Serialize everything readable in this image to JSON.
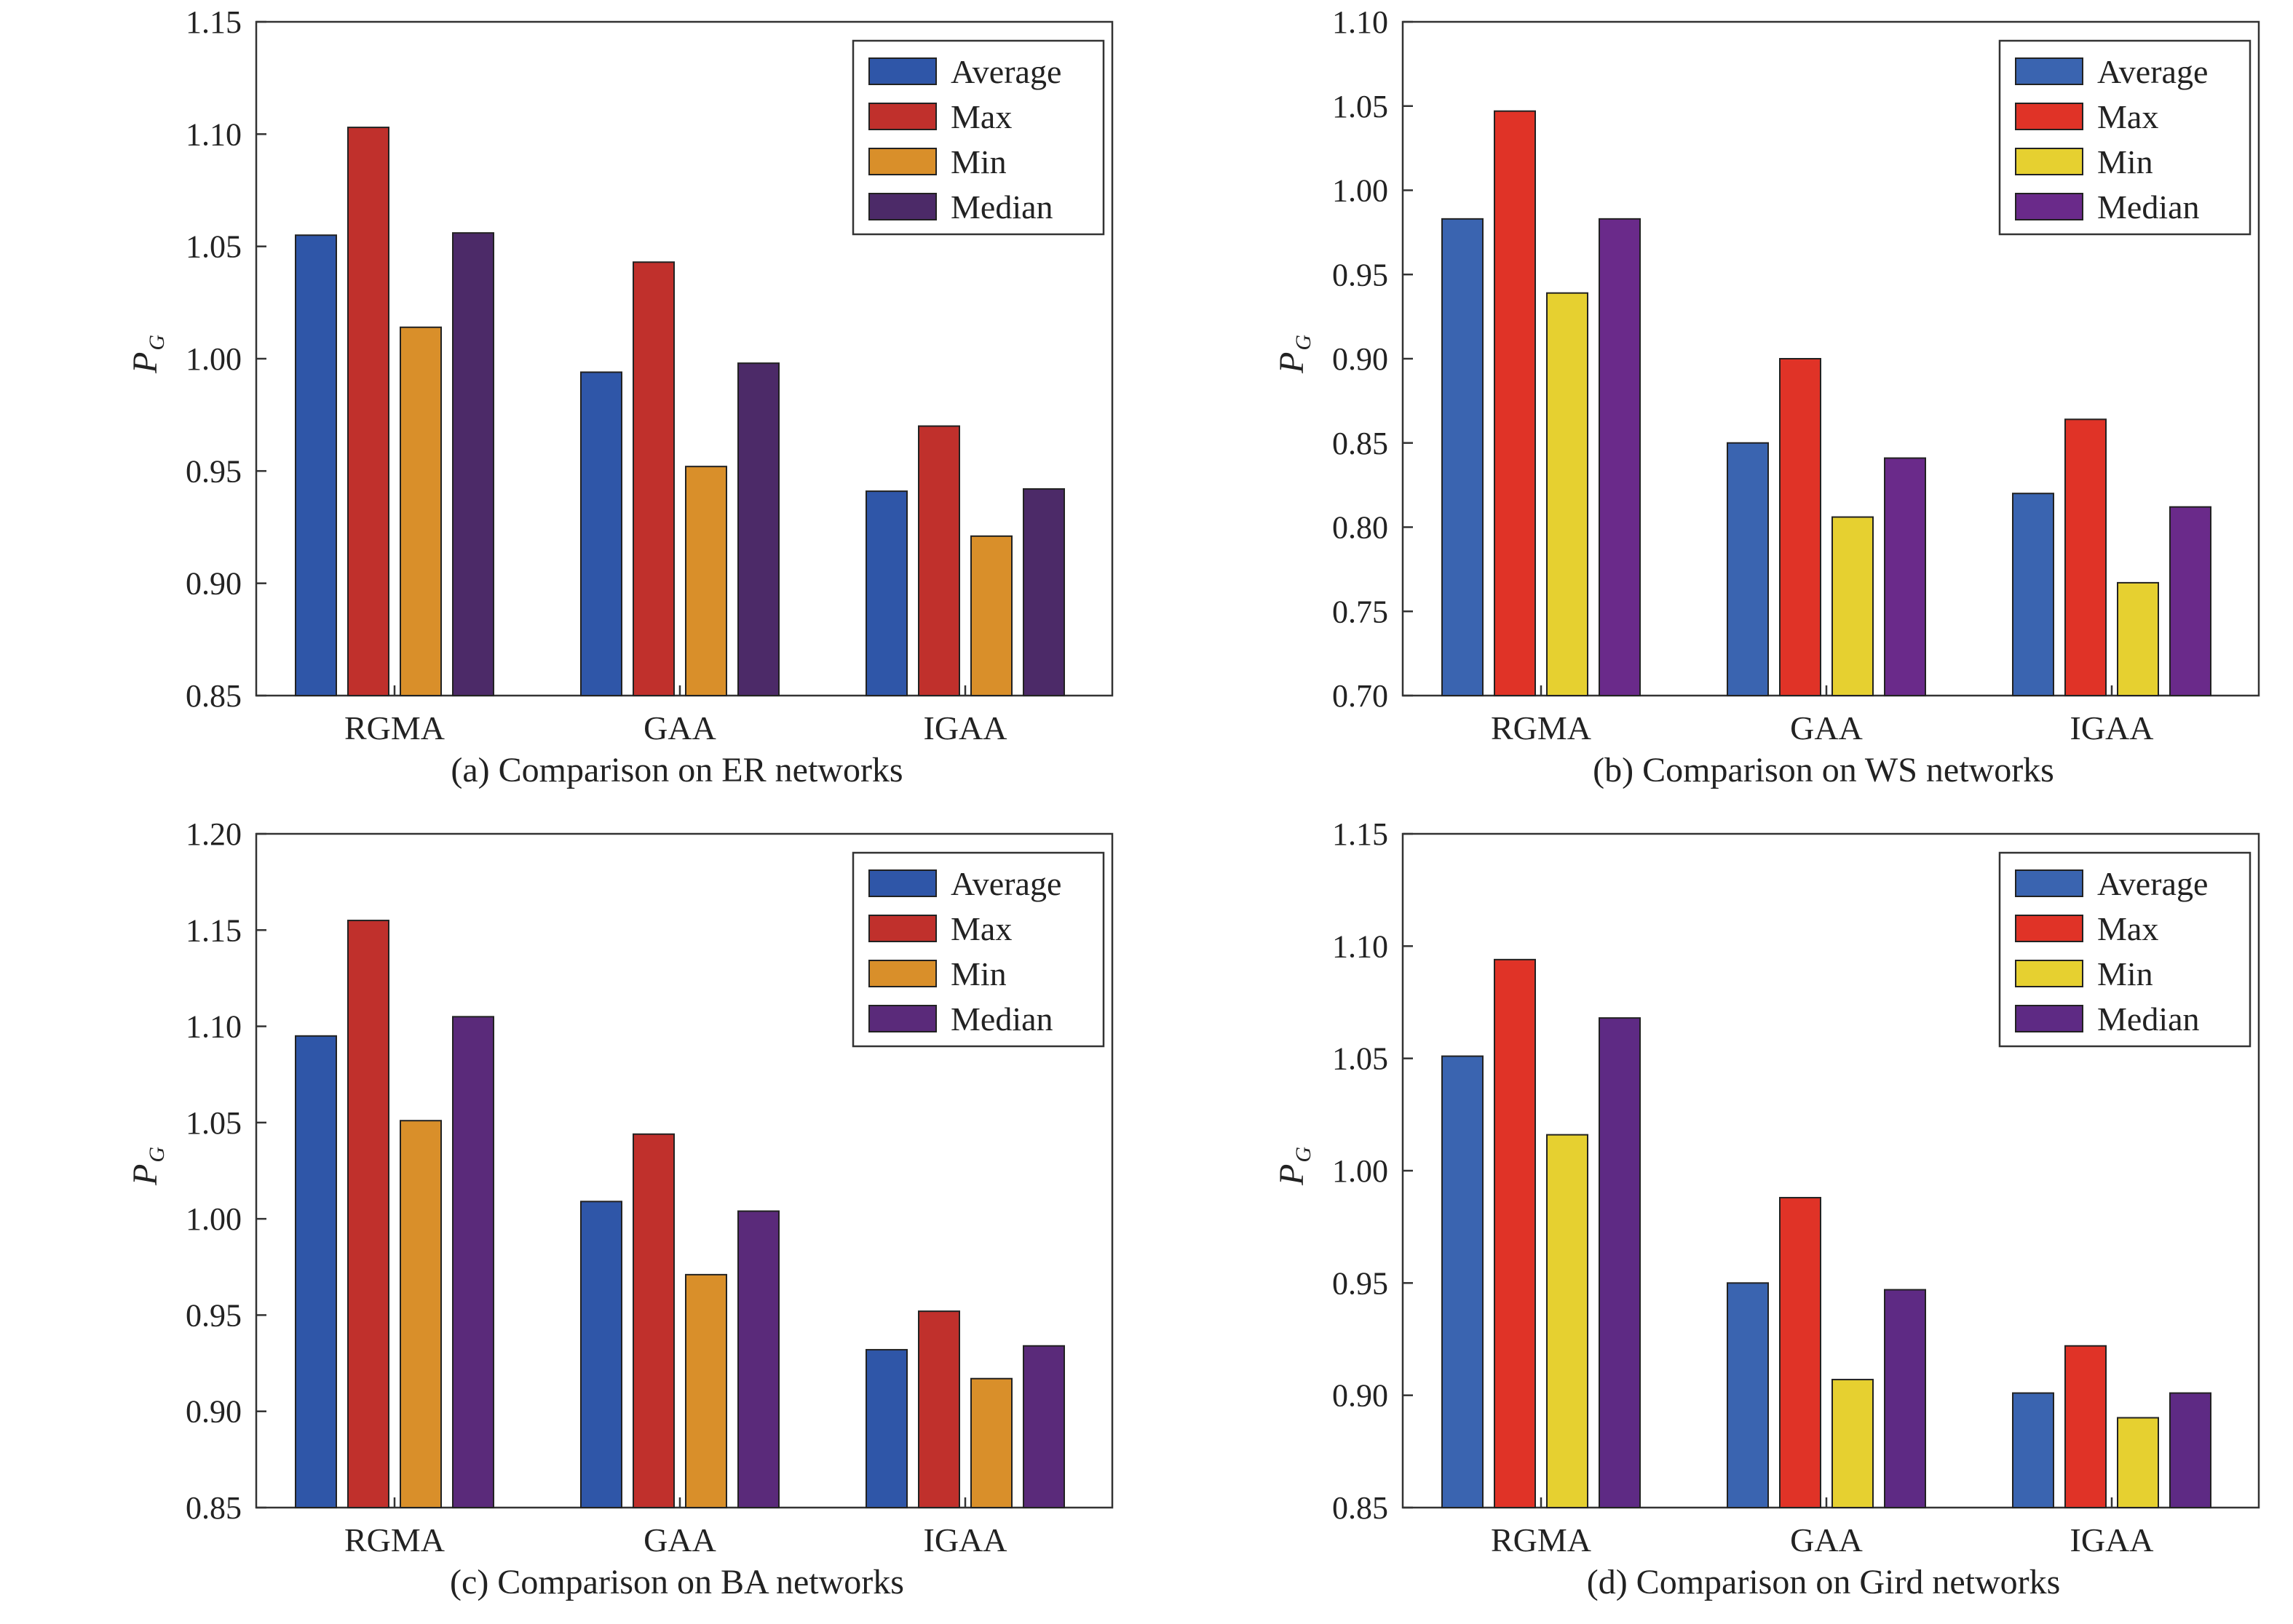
{
  "chart_data": [
    {
      "type": "bar",
      "caption": "(a) Comparison on ER networks",
      "ylabel": "P",
      "ylabel_sub": "G",
      "categories": [
        "RGMA",
        "GAA",
        "IGAA"
      ],
      "ylim": [
        0.85,
        1.15
      ],
      "yticks": [
        "0.85",
        "0.90",
        "0.95",
        "1.00",
        "1.05",
        "1.10",
        "1.15"
      ],
      "legend_position": "top-right",
      "series": [
        {
          "name": "Average",
          "color": "#2f56a8",
          "values": [
            1.055,
            0.994,
            0.941
          ]
        },
        {
          "name": "Max",
          "color": "#c0302c",
          "values": [
            1.103,
            1.043,
            0.97
          ]
        },
        {
          "name": "Min",
          "color": "#d98f2a",
          "values": [
            1.014,
            0.952,
            0.921
          ]
        },
        {
          "name": "Median",
          "color": "#4c2a68",
          "values": [
            1.056,
            0.998,
            0.942
          ]
        }
      ]
    },
    {
      "type": "bar",
      "caption": "(b) Comparison on WS networks",
      "ylabel": "P",
      "ylabel_sub": "G",
      "categories": [
        "RGMA",
        "GAA",
        "IGAA"
      ],
      "ylim": [
        0.7,
        1.1
      ],
      "yticks": [
        "0.70",
        "0.75",
        "0.80",
        "0.85",
        "0.90",
        "0.95",
        "1.00",
        "1.05",
        "1.10"
      ],
      "legend_position": "top-right",
      "series": [
        {
          "name": "Average",
          "color": "#3a64b0",
          "values": [
            0.983,
            0.85,
            0.82
          ]
        },
        {
          "name": "Max",
          "color": "#e03327",
          "values": [
            1.047,
            0.9,
            0.864
          ]
        },
        {
          "name": "Min",
          "color": "#e6d030",
          "values": [
            0.939,
            0.806,
            0.767
          ]
        },
        {
          "name": "Median",
          "color": "#6a2a8a",
          "values": [
            0.983,
            0.841,
            0.812
          ]
        }
      ]
    },
    {
      "type": "bar",
      "caption": "(c) Comparison on BA networks",
      "ylabel": "P",
      "ylabel_sub": "G",
      "categories": [
        "RGMA",
        "GAA",
        "IGAA"
      ],
      "ylim": [
        0.85,
        1.2
      ],
      "yticks": [
        "0.85",
        "0.90",
        "0.95",
        "1.00",
        "1.05",
        "1.10",
        "1.15",
        "1.20"
      ],
      "legend_position": "top-right",
      "series": [
        {
          "name": "Average",
          "color": "#2f56a8",
          "values": [
            1.095,
            1.009,
            0.932
          ]
        },
        {
          "name": "Max",
          "color": "#c0302c",
          "values": [
            1.155,
            1.044,
            0.952
          ]
        },
        {
          "name": "Min",
          "color": "#d98f2a",
          "values": [
            1.051,
            0.971,
            0.917
          ]
        },
        {
          "name": "Median",
          "color": "#5a2a7a",
          "values": [
            1.105,
            1.004,
            0.934
          ]
        }
      ]
    },
    {
      "type": "bar",
      "caption": "(d) Comparison on Gird networks",
      "ylabel": "P",
      "ylabel_sub": "G",
      "categories": [
        "RGMA",
        "GAA",
        "IGAA"
      ],
      "ylim": [
        0.85,
        1.15
      ],
      "yticks": [
        "0.85",
        "0.90",
        "0.95",
        "1.00",
        "1.05",
        "1.10",
        "1.15"
      ],
      "legend_position": "top-right",
      "series": [
        {
          "name": "Average",
          "color": "#3a64b0",
          "values": [
            1.051,
            0.95,
            0.901
          ]
        },
        {
          "name": "Max",
          "color": "#e03327",
          "values": [
            1.094,
            0.988,
            0.922
          ]
        },
        {
          "name": "Min",
          "color": "#e6d030",
          "values": [
            1.016,
            0.907,
            0.89
          ]
        },
        {
          "name": "Median",
          "color": "#5e2a84",
          "values": [
            1.068,
            0.947,
            0.901
          ]
        }
      ]
    }
  ]
}
